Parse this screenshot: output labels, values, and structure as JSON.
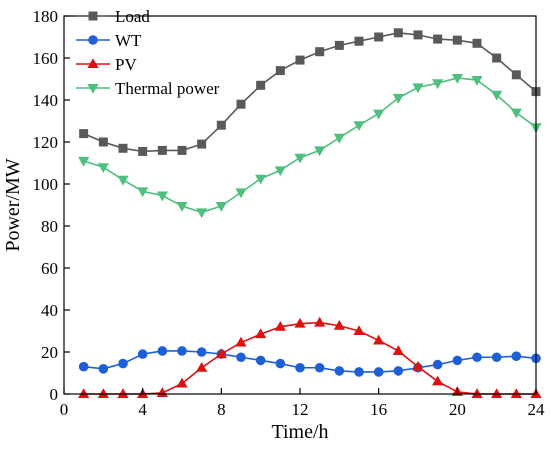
{
  "chart_data": {
    "type": "line",
    "xlabel": "Time/h",
    "ylabel": "Power/MW",
    "xlim": [
      0,
      24
    ],
    "ylim": [
      0,
      180
    ],
    "xticks": [
      0,
      4,
      8,
      12,
      16,
      20,
      24
    ],
    "yticks": [
      0,
      20,
      40,
      60,
      80,
      100,
      120,
      140,
      160,
      180
    ],
    "grid": false,
    "legend_position": "top-left",
    "x": [
      1,
      2,
      3,
      4,
      5,
      6,
      7,
      8,
      9,
      10,
      11,
      12,
      13,
      14,
      15,
      16,
      17,
      18,
      19,
      20,
      21,
      22,
      23,
      24
    ],
    "series": [
      {
        "name": "Load",
        "marker": "square",
        "color": "#595959",
        "values": [
          124,
          120,
          117,
          115.5,
          116,
          116,
          119,
          128,
          138,
          147,
          154,
          159,
          163,
          166,
          168,
          170,
          172,
          171,
          169,
          168.5,
          167,
          160,
          152,
          144
        ]
      },
      {
        "name": "WT",
        "marker": "circle",
        "color": "#1f5fd6",
        "values": [
          13,
          12,
          14.5,
          19,
          20.5,
          20.5,
          20,
          19,
          17.5,
          16,
          14.5,
          12.5,
          12.5,
          11,
          10.5,
          10.5,
          11,
          12.5,
          14,
          16,
          17.5,
          17.5,
          18,
          17
        ]
      },
      {
        "name": "PV",
        "marker": "triangle-up",
        "color": "#dd1111",
        "values": [
          0,
          0,
          0,
          0,
          0.5,
          5,
          12.5,
          19,
          24.5,
          28.5,
          32,
          33.5,
          34,
          32.5,
          30,
          25.5,
          20.5,
          13,
          6,
          1,
          0,
          0,
          0,
          0
        ]
      },
      {
        "name": "Thermal power",
        "marker": "triangle-down",
        "color": "#4fbf7f",
        "values": [
          111,
          108,
          102,
          96.5,
          94.5,
          89.5,
          86.5,
          89.5,
          96,
          102.5,
          106.5,
          112.5,
          116,
          122,
          128,
          133.5,
          141,
          146,
          148,
          150.5,
          149.5,
          142.5,
          134,
          127
        ]
      }
    ]
  }
}
